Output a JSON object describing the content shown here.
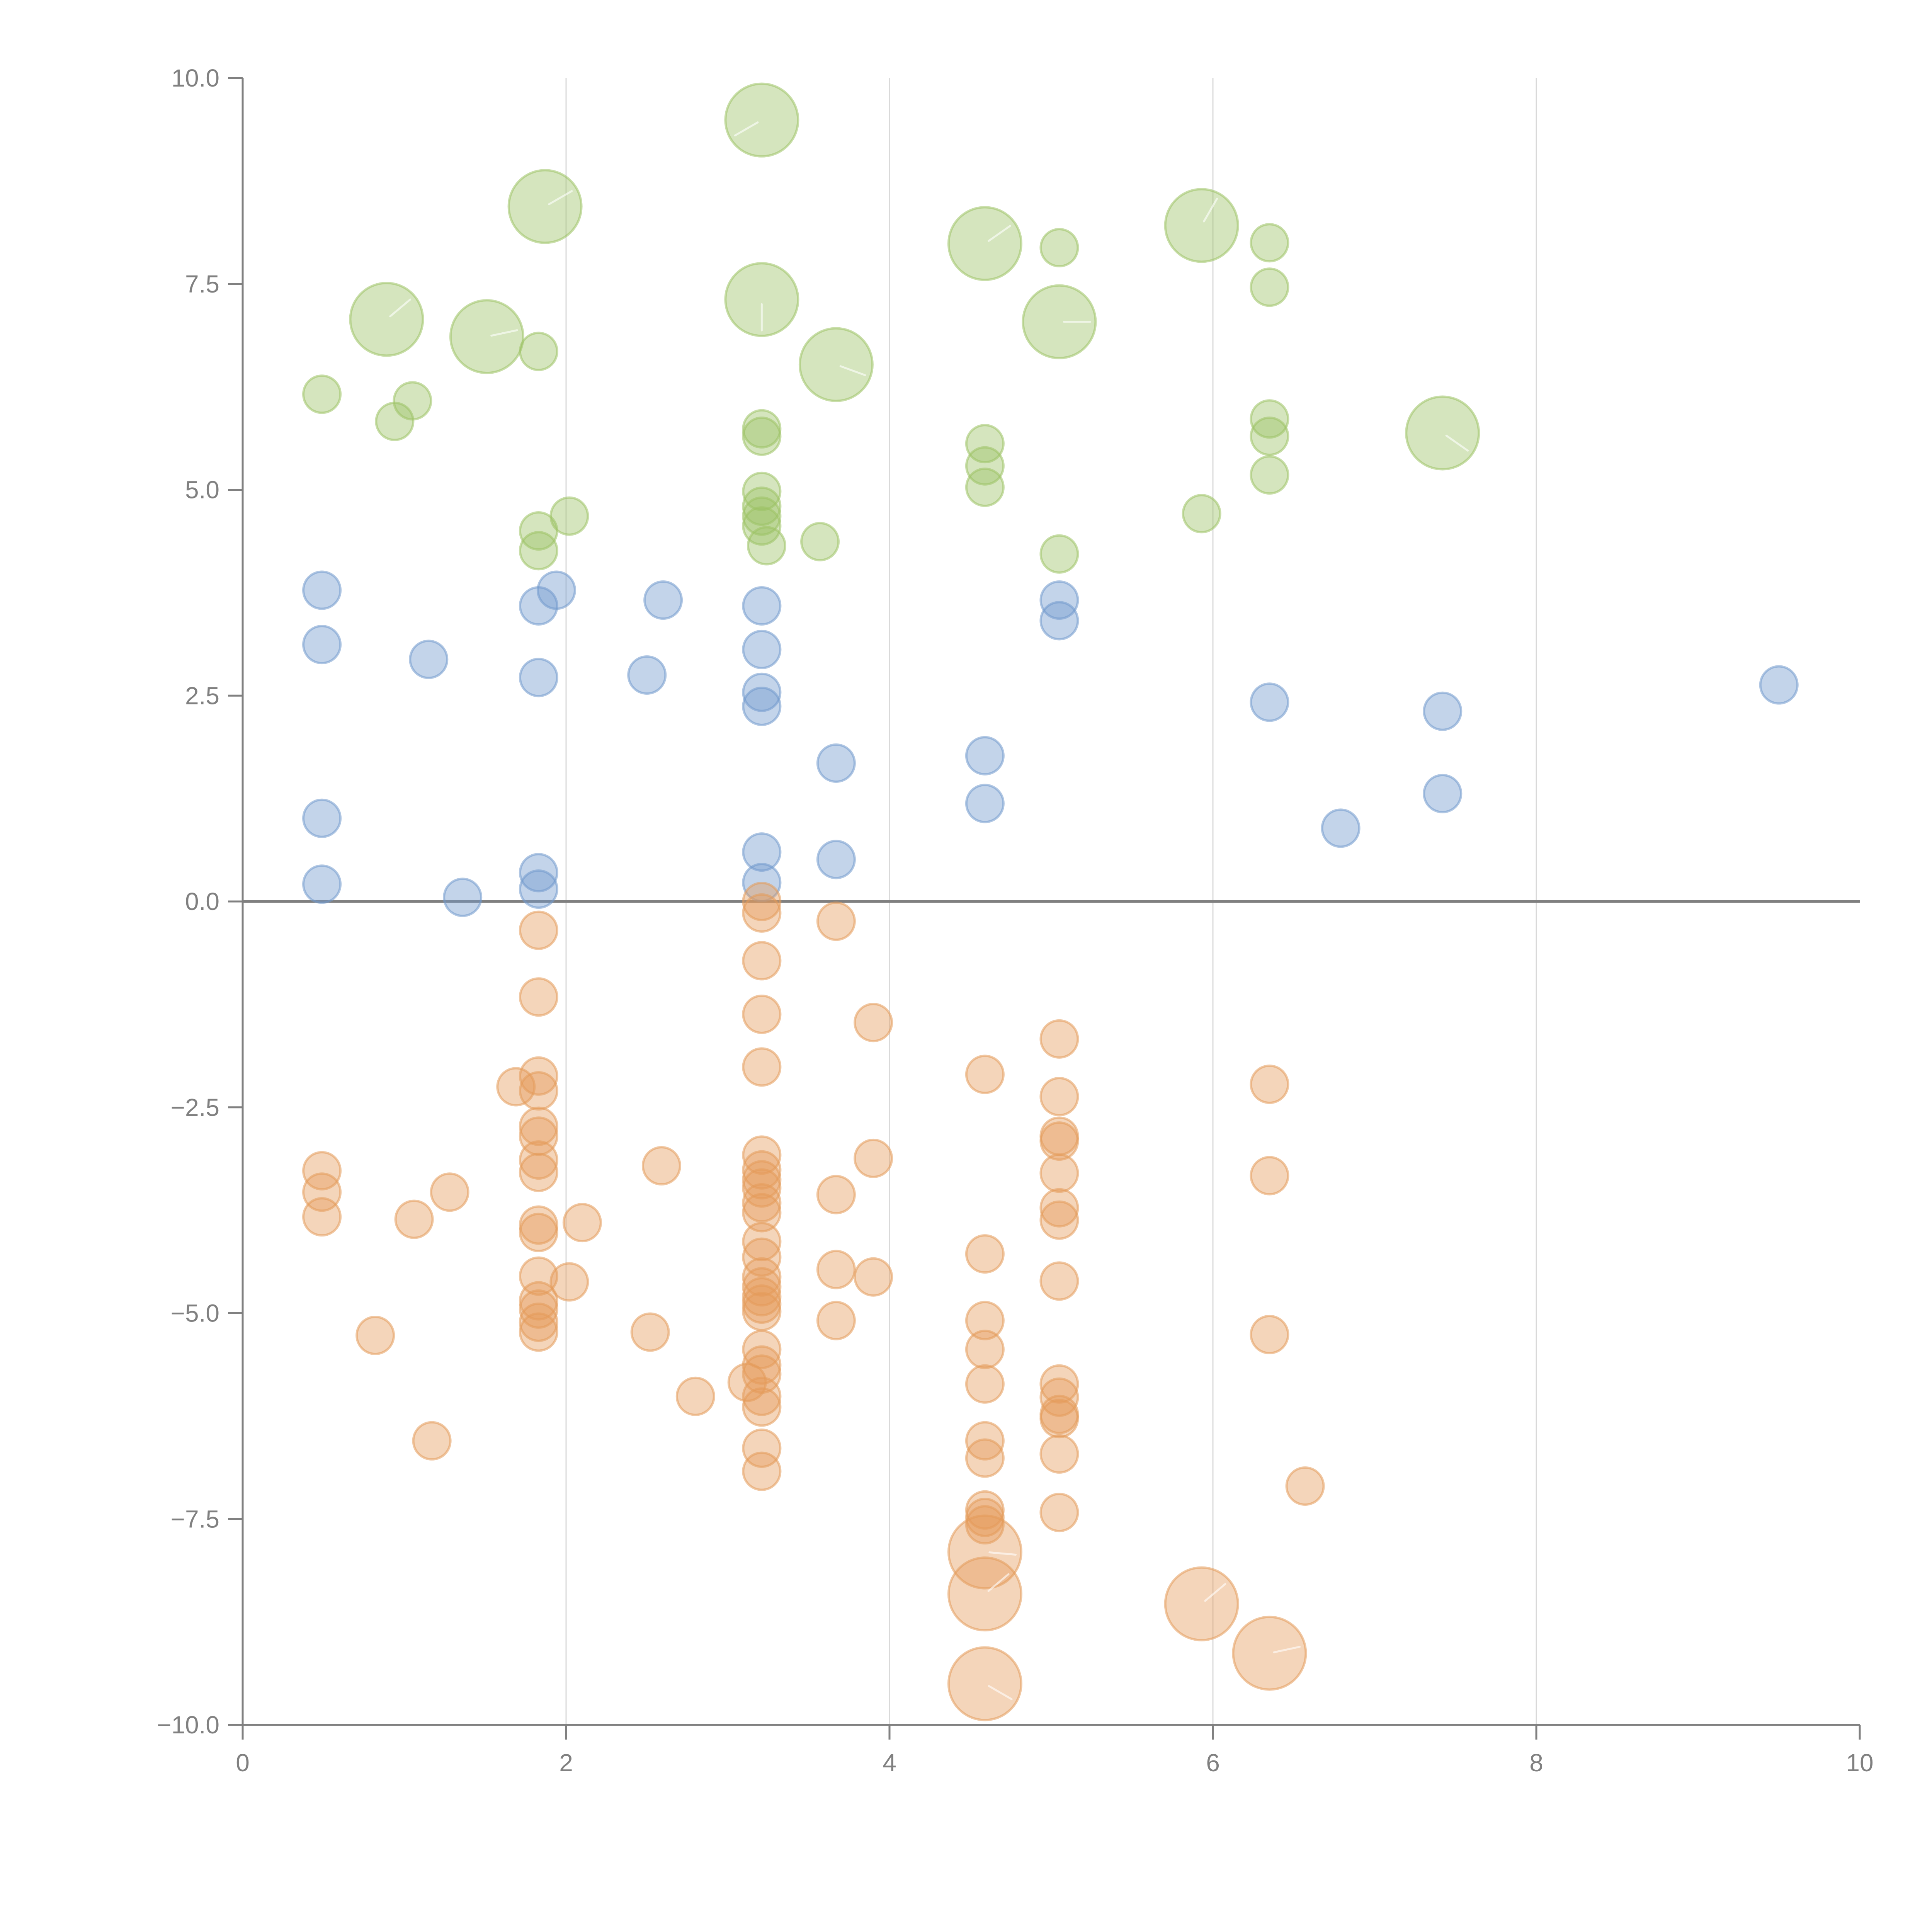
{
  "chart_data": {
    "type": "scatter",
    "title": "",
    "xlabel": "",
    "ylabel": "",
    "xlim": [
      0,
      10
    ],
    "ylim": [
      -10,
      10
    ],
    "x_ticks": [
      "0",
      "2",
      "4",
      "6",
      "8",
      "10"
    ],
    "x_tick_values": [
      0,
      2,
      4,
      6,
      8,
      10
    ],
    "y_ticks": [
      "10.0",
      "7.5",
      "5.0",
      "2.5",
      "0.0",
      "−2.5",
      "−5.0",
      "−7.5",
      "−10.0"
    ],
    "y_tick_values": [
      10,
      7.5,
      5,
      2.5,
      0,
      -2.5,
      -5,
      -7.5,
      -10
    ],
    "grid": "vertical",
    "reference_line_y": 0,
    "legend": "none",
    "size_classes": {
      "small": 1,
      "large": 2
    },
    "series": [
      {
        "name": "green",
        "color": "#9cc264",
        "points": [
          {
            "x": 0.49,
            "y": 6.16,
            "size": "small"
          },
          {
            "x": 0.89,
            "y": 7.07,
            "size": "large"
          },
          {
            "x": 0.94,
            "y": 5.83,
            "size": "small"
          },
          {
            "x": 1.05,
            "y": 6.08,
            "size": "small"
          },
          {
            "x": 1.51,
            "y": 6.86,
            "size": "large"
          },
          {
            "x": 1.83,
            "y": 6.68,
            "size": "small"
          },
          {
            "x": 1.87,
            "y": 8.44,
            "size": "large"
          },
          {
            "x": 1.83,
            "y": 4.5,
            "size": "small"
          },
          {
            "x": 1.83,
            "y": 4.26,
            "size": "small"
          },
          {
            "x": 2.02,
            "y": 4.68,
            "size": "small"
          },
          {
            "x": 3.21,
            "y": 9.49,
            "size": "large"
          },
          {
            "x": 3.21,
            "y": 7.31,
            "size": "large"
          },
          {
            "x": 3.21,
            "y": 5.74,
            "size": "small"
          },
          {
            "x": 3.21,
            "y": 5.65,
            "size": "small"
          },
          {
            "x": 3.21,
            "y": 4.98,
            "size": "small"
          },
          {
            "x": 3.21,
            "y": 4.8,
            "size": "small"
          },
          {
            "x": 3.21,
            "y": 4.68,
            "size": "small"
          },
          {
            "x": 3.21,
            "y": 4.56,
            "size": "small"
          },
          {
            "x": 3.24,
            "y": 4.32,
            "size": "small"
          },
          {
            "x": 3.57,
            "y": 4.37,
            "size": "small"
          },
          {
            "x": 3.67,
            "y": 6.52,
            "size": "large"
          },
          {
            "x": 4.59,
            "y": 7.99,
            "size": "large"
          },
          {
            "x": 4.59,
            "y": 5.56,
            "size": "small"
          },
          {
            "x": 4.59,
            "y": 5.29,
            "size": "small"
          },
          {
            "x": 4.59,
            "y": 5.03,
            "size": "small"
          },
          {
            "x": 5.05,
            "y": 7.94,
            "size": "small"
          },
          {
            "x": 5.05,
            "y": 7.04,
            "size": "large"
          },
          {
            "x": 5.05,
            "y": 4.22,
            "size": "small"
          },
          {
            "x": 5.93,
            "y": 8.21,
            "size": "large"
          },
          {
            "x": 5.93,
            "y": 4.71,
            "size": "small"
          },
          {
            "x": 6.35,
            "y": 8.0,
            "size": "small"
          },
          {
            "x": 6.35,
            "y": 7.46,
            "size": "small"
          },
          {
            "x": 6.35,
            "y": 5.86,
            "size": "small"
          },
          {
            "x": 6.35,
            "y": 5.65,
            "size": "small"
          },
          {
            "x": 6.35,
            "y": 5.18,
            "size": "small"
          },
          {
            "x": 7.42,
            "y": 5.69,
            "size": "large"
          }
        ]
      },
      {
        "name": "blue",
        "color": "#7199cc",
        "points": [
          {
            "x": 0.49,
            "y": 3.78,
            "size": "small"
          },
          {
            "x": 0.49,
            "y": 3.12,
            "size": "small"
          },
          {
            "x": 1.15,
            "y": 2.94,
            "size": "small"
          },
          {
            "x": 0.49,
            "y": 1.01,
            "size": "small"
          },
          {
            "x": 0.49,
            "y": 0.21,
            "size": "small"
          },
          {
            "x": 1.36,
            "y": 0.05,
            "size": "small"
          },
          {
            "x": 1.83,
            "y": 3.59,
            "size": "small"
          },
          {
            "x": 1.94,
            "y": 3.78,
            "size": "small"
          },
          {
            "x": 1.83,
            "y": 2.72,
            "size": "small"
          },
          {
            "x": 1.83,
            "y": 0.35,
            "size": "small"
          },
          {
            "x": 1.83,
            "y": 0.15,
            "size": "small"
          },
          {
            "x": 2.6,
            "y": 3.66,
            "size": "small"
          },
          {
            "x": 2.5,
            "y": 2.75,
            "size": "small"
          },
          {
            "x": 3.21,
            "y": 3.59,
            "size": "small"
          },
          {
            "x": 3.21,
            "y": 3.06,
            "size": "small"
          },
          {
            "x": 3.21,
            "y": 2.54,
            "size": "small"
          },
          {
            "x": 3.21,
            "y": 2.37,
            "size": "small"
          },
          {
            "x": 3.21,
            "y": 0.6,
            "size": "small"
          },
          {
            "x": 3.21,
            "y": 0.23,
            "size": "small"
          },
          {
            "x": 3.67,
            "y": 1.68,
            "size": "small"
          },
          {
            "x": 3.67,
            "y": 0.51,
            "size": "small"
          },
          {
            "x": 4.59,
            "y": 1.77,
            "size": "small"
          },
          {
            "x": 4.59,
            "y": 1.19,
            "size": "small"
          },
          {
            "x": 5.05,
            "y": 3.66,
            "size": "small"
          },
          {
            "x": 5.05,
            "y": 3.41,
            "size": "small"
          },
          {
            "x": 6.35,
            "y": 2.42,
            "size": "small"
          },
          {
            "x": 6.79,
            "y": 0.89,
            "size": "small"
          },
          {
            "x": 7.42,
            "y": 2.31,
            "size": "small"
          },
          {
            "x": 7.42,
            "y": 1.31,
            "size": "small"
          },
          {
            "x": 9.5,
            "y": 2.63,
            "size": "small"
          }
        ]
      },
      {
        "name": "orange",
        "color": "#e49a5a",
        "points": [
          {
            "x": 1.83,
            "y": -0.35,
            "size": "small"
          },
          {
            "x": 1.83,
            "y": -1.16,
            "size": "small"
          },
          {
            "x": 1.83,
            "y": -2.12,
            "size": "small"
          },
          {
            "x": 1.83,
            "y": -2.3,
            "size": "small"
          },
          {
            "x": 1.69,
            "y": -2.25,
            "size": "small"
          },
          {
            "x": 1.83,
            "y": -2.73,
            "size": "small"
          },
          {
            "x": 1.83,
            "y": -2.85,
            "size": "small"
          },
          {
            "x": 1.83,
            "y": -3.14,
            "size": "small"
          },
          {
            "x": 1.83,
            "y": -3.29,
            "size": "small"
          },
          {
            "x": 1.83,
            "y": -3.93,
            "size": "small"
          },
          {
            "x": 1.83,
            "y": -4.02,
            "size": "small"
          },
          {
            "x": 1.83,
            "y": -4.55,
            "size": "small"
          },
          {
            "x": 1.83,
            "y": -4.85,
            "size": "small"
          },
          {
            "x": 1.83,
            "y": -4.95,
            "size": "small"
          },
          {
            "x": 1.83,
            "y": -5.11,
            "size": "small"
          },
          {
            "x": 1.83,
            "y": -5.23,
            "size": "small"
          },
          {
            "x": 2.02,
            "y": -4.62,
            "size": "small"
          },
          {
            "x": 2.1,
            "y": -3.9,
            "size": "small"
          },
          {
            "x": 0.49,
            "y": -3.27,
            "size": "small"
          },
          {
            "x": 0.49,
            "y": -3.53,
            "size": "small"
          },
          {
            "x": 0.49,
            "y": -3.83,
            "size": "small"
          },
          {
            "x": 1.06,
            "y": -3.86,
            "size": "small"
          },
          {
            "x": 1.28,
            "y": -3.53,
            "size": "small"
          },
          {
            "x": 0.82,
            "y": -5.27,
            "size": "small"
          },
          {
            "x": 1.17,
            "y": -6.55,
            "size": "small"
          },
          {
            "x": 2.59,
            "y": -3.21,
            "size": "small"
          },
          {
            "x": 2.52,
            "y": -5.23,
            "size": "small"
          },
          {
            "x": 2.8,
            "y": -6.01,
            "size": "small"
          },
          {
            "x": 3.21,
            "y": 0.0,
            "size": "small"
          },
          {
            "x": 3.21,
            "y": -0.14,
            "size": "small"
          },
          {
            "x": 3.21,
            "y": -0.72,
            "size": "small"
          },
          {
            "x": 3.21,
            "y": -1.37,
            "size": "small"
          },
          {
            "x": 3.21,
            "y": -2.01,
            "size": "small"
          },
          {
            "x": 3.21,
            "y": -3.08,
            "size": "small"
          },
          {
            "x": 3.21,
            "y": -3.26,
            "size": "small"
          },
          {
            "x": 3.21,
            "y": -3.38,
            "size": "small"
          },
          {
            "x": 3.21,
            "y": -3.48,
            "size": "small"
          },
          {
            "x": 3.21,
            "y": -3.66,
            "size": "small"
          },
          {
            "x": 3.21,
            "y": -3.78,
            "size": "small"
          },
          {
            "x": 3.21,
            "y": -4.13,
            "size": "small"
          },
          {
            "x": 3.21,
            "y": -4.32,
            "size": "small"
          },
          {
            "x": 3.21,
            "y": -4.56,
            "size": "small"
          },
          {
            "x": 3.21,
            "y": -4.68,
            "size": "small"
          },
          {
            "x": 3.21,
            "y": -4.8,
            "size": "small"
          },
          {
            "x": 3.21,
            "y": -4.89,
            "size": "small"
          },
          {
            "x": 3.21,
            "y": -4.98,
            "size": "small"
          },
          {
            "x": 3.21,
            "y": -5.44,
            "size": "small"
          },
          {
            "x": 3.21,
            "y": -5.63,
            "size": "small"
          },
          {
            "x": 3.21,
            "y": -5.74,
            "size": "small"
          },
          {
            "x": 3.21,
            "y": -6.01,
            "size": "small"
          },
          {
            "x": 3.21,
            "y": -6.14,
            "size": "small"
          },
          {
            "x": 3.21,
            "y": -6.64,
            "size": "small"
          },
          {
            "x": 3.21,
            "y": -6.92,
            "size": "small"
          },
          {
            "x": 3.12,
            "y": -5.84,
            "size": "small"
          },
          {
            "x": 3.67,
            "y": -0.24,
            "size": "small"
          },
          {
            "x": 3.9,
            "y": -1.47,
            "size": "small"
          },
          {
            "x": 3.9,
            "y": -3.12,
            "size": "small"
          },
          {
            "x": 3.67,
            "y": -3.56,
            "size": "small"
          },
          {
            "x": 3.67,
            "y": -4.47,
            "size": "small"
          },
          {
            "x": 3.9,
            "y": -4.56,
            "size": "small"
          },
          {
            "x": 3.67,
            "y": -5.09,
            "size": "small"
          },
          {
            "x": 4.59,
            "y": -2.1,
            "size": "small"
          },
          {
            "x": 4.59,
            "y": -4.28,
            "size": "small"
          },
          {
            "x": 4.59,
            "y": -5.09,
            "size": "small"
          },
          {
            "x": 4.59,
            "y": -5.44,
            "size": "small"
          },
          {
            "x": 4.59,
            "y": -5.86,
            "size": "small"
          },
          {
            "x": 4.59,
            "y": -6.55,
            "size": "small"
          },
          {
            "x": 4.59,
            "y": -6.76,
            "size": "small"
          },
          {
            "x": 4.59,
            "y": -7.39,
            "size": "small"
          },
          {
            "x": 4.59,
            "y": -7.48,
            "size": "small"
          },
          {
            "x": 4.59,
            "y": -7.57,
            "size": "small"
          },
          {
            "x": 4.59,
            "y": -7.9,
            "size": "large"
          },
          {
            "x": 4.59,
            "y": -8.41,
            "size": "large"
          },
          {
            "x": 4.59,
            "y": -9.5,
            "size": "large"
          },
          {
            "x": 5.05,
            "y": -1.67,
            "size": "small"
          },
          {
            "x": 5.05,
            "y": -2.37,
            "size": "small"
          },
          {
            "x": 5.05,
            "y": -2.85,
            "size": "small"
          },
          {
            "x": 5.05,
            "y": -2.91,
            "size": "small"
          },
          {
            "x": 5.05,
            "y": -3.3,
            "size": "small"
          },
          {
            "x": 5.05,
            "y": -3.72,
            "size": "small"
          },
          {
            "x": 5.05,
            "y": -3.87,
            "size": "small"
          },
          {
            "x": 5.05,
            "y": -4.61,
            "size": "small"
          },
          {
            "x": 5.05,
            "y": -5.86,
            "size": "small"
          },
          {
            "x": 5.05,
            "y": -6.02,
            "size": "small"
          },
          {
            "x": 5.05,
            "y": -6.23,
            "size": "small"
          },
          {
            "x": 5.05,
            "y": -6.28,
            "size": "small"
          },
          {
            "x": 5.05,
            "y": -6.71,
            "size": "small"
          },
          {
            "x": 5.05,
            "y": -7.42,
            "size": "small"
          },
          {
            "x": 5.93,
            "y": -8.53,
            "size": "large"
          },
          {
            "x": 6.35,
            "y": -2.22,
            "size": "small"
          },
          {
            "x": 6.35,
            "y": -3.33,
            "size": "small"
          },
          {
            "x": 6.35,
            "y": -5.26,
            "size": "small"
          },
          {
            "x": 6.35,
            "y": -9.13,
            "size": "large"
          },
          {
            "x": 6.57,
            "y": -7.1,
            "size": "small"
          }
        ]
      }
    ]
  }
}
